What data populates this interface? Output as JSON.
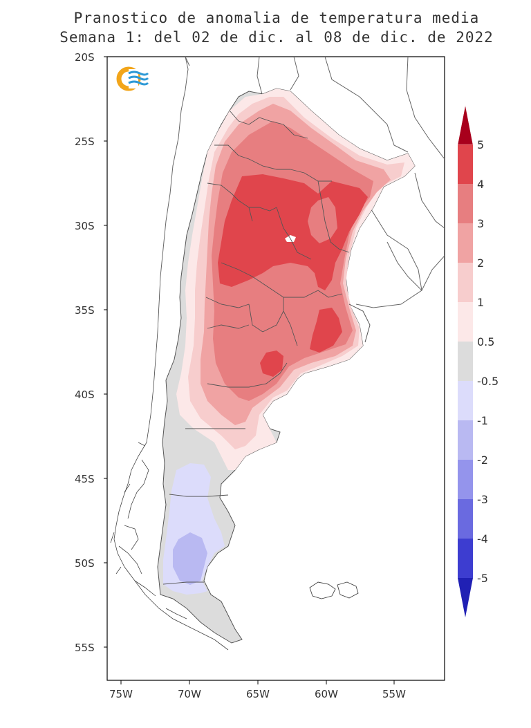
{
  "title": {
    "line1": "Pranostico de anomalia de temperatura media",
    "line2": "Semana 1: del 02 de dic. al 08 de dic. de 2022"
  },
  "map": {
    "lat_ticks": [
      "20S",
      "25S",
      "30S",
      "35S",
      "40S",
      "45S",
      "50S",
      "55S"
    ],
    "lon_ticks": [
      "75W",
      "70W",
      "65W",
      "60W",
      "55W"
    ],
    "lat_range": [
      -57.5,
      -20
    ],
    "lon_range": [
      -76,
      -51.5
    ],
    "logo_icon": "smn-logo-icon"
  },
  "colorbar": {
    "labels": [
      "5",
      "4",
      "3",
      "2",
      "1",
      "0.5",
      "-0.5",
      "-1",
      "-2",
      "-3",
      "-4",
      "-5"
    ],
    "colors": {
      "top_arrow": "#a8001c",
      "4_5": "#e0454c",
      "3_4": "#e77e80",
      "2_3": "#f0a3a3",
      "1_2": "#f7cdcd",
      "05_1": "#fce8e8",
      "neutral": "#dcdcdc",
      "m1_m05": "#dcdcfb",
      "m2_m1": "#b9b9f2",
      "m3_m2": "#9494ec",
      "m4_m3": "#6a6ae0",
      "m5_m4": "#3d3dd0",
      "bottom_arrow": "#2020b4"
    }
  }
}
